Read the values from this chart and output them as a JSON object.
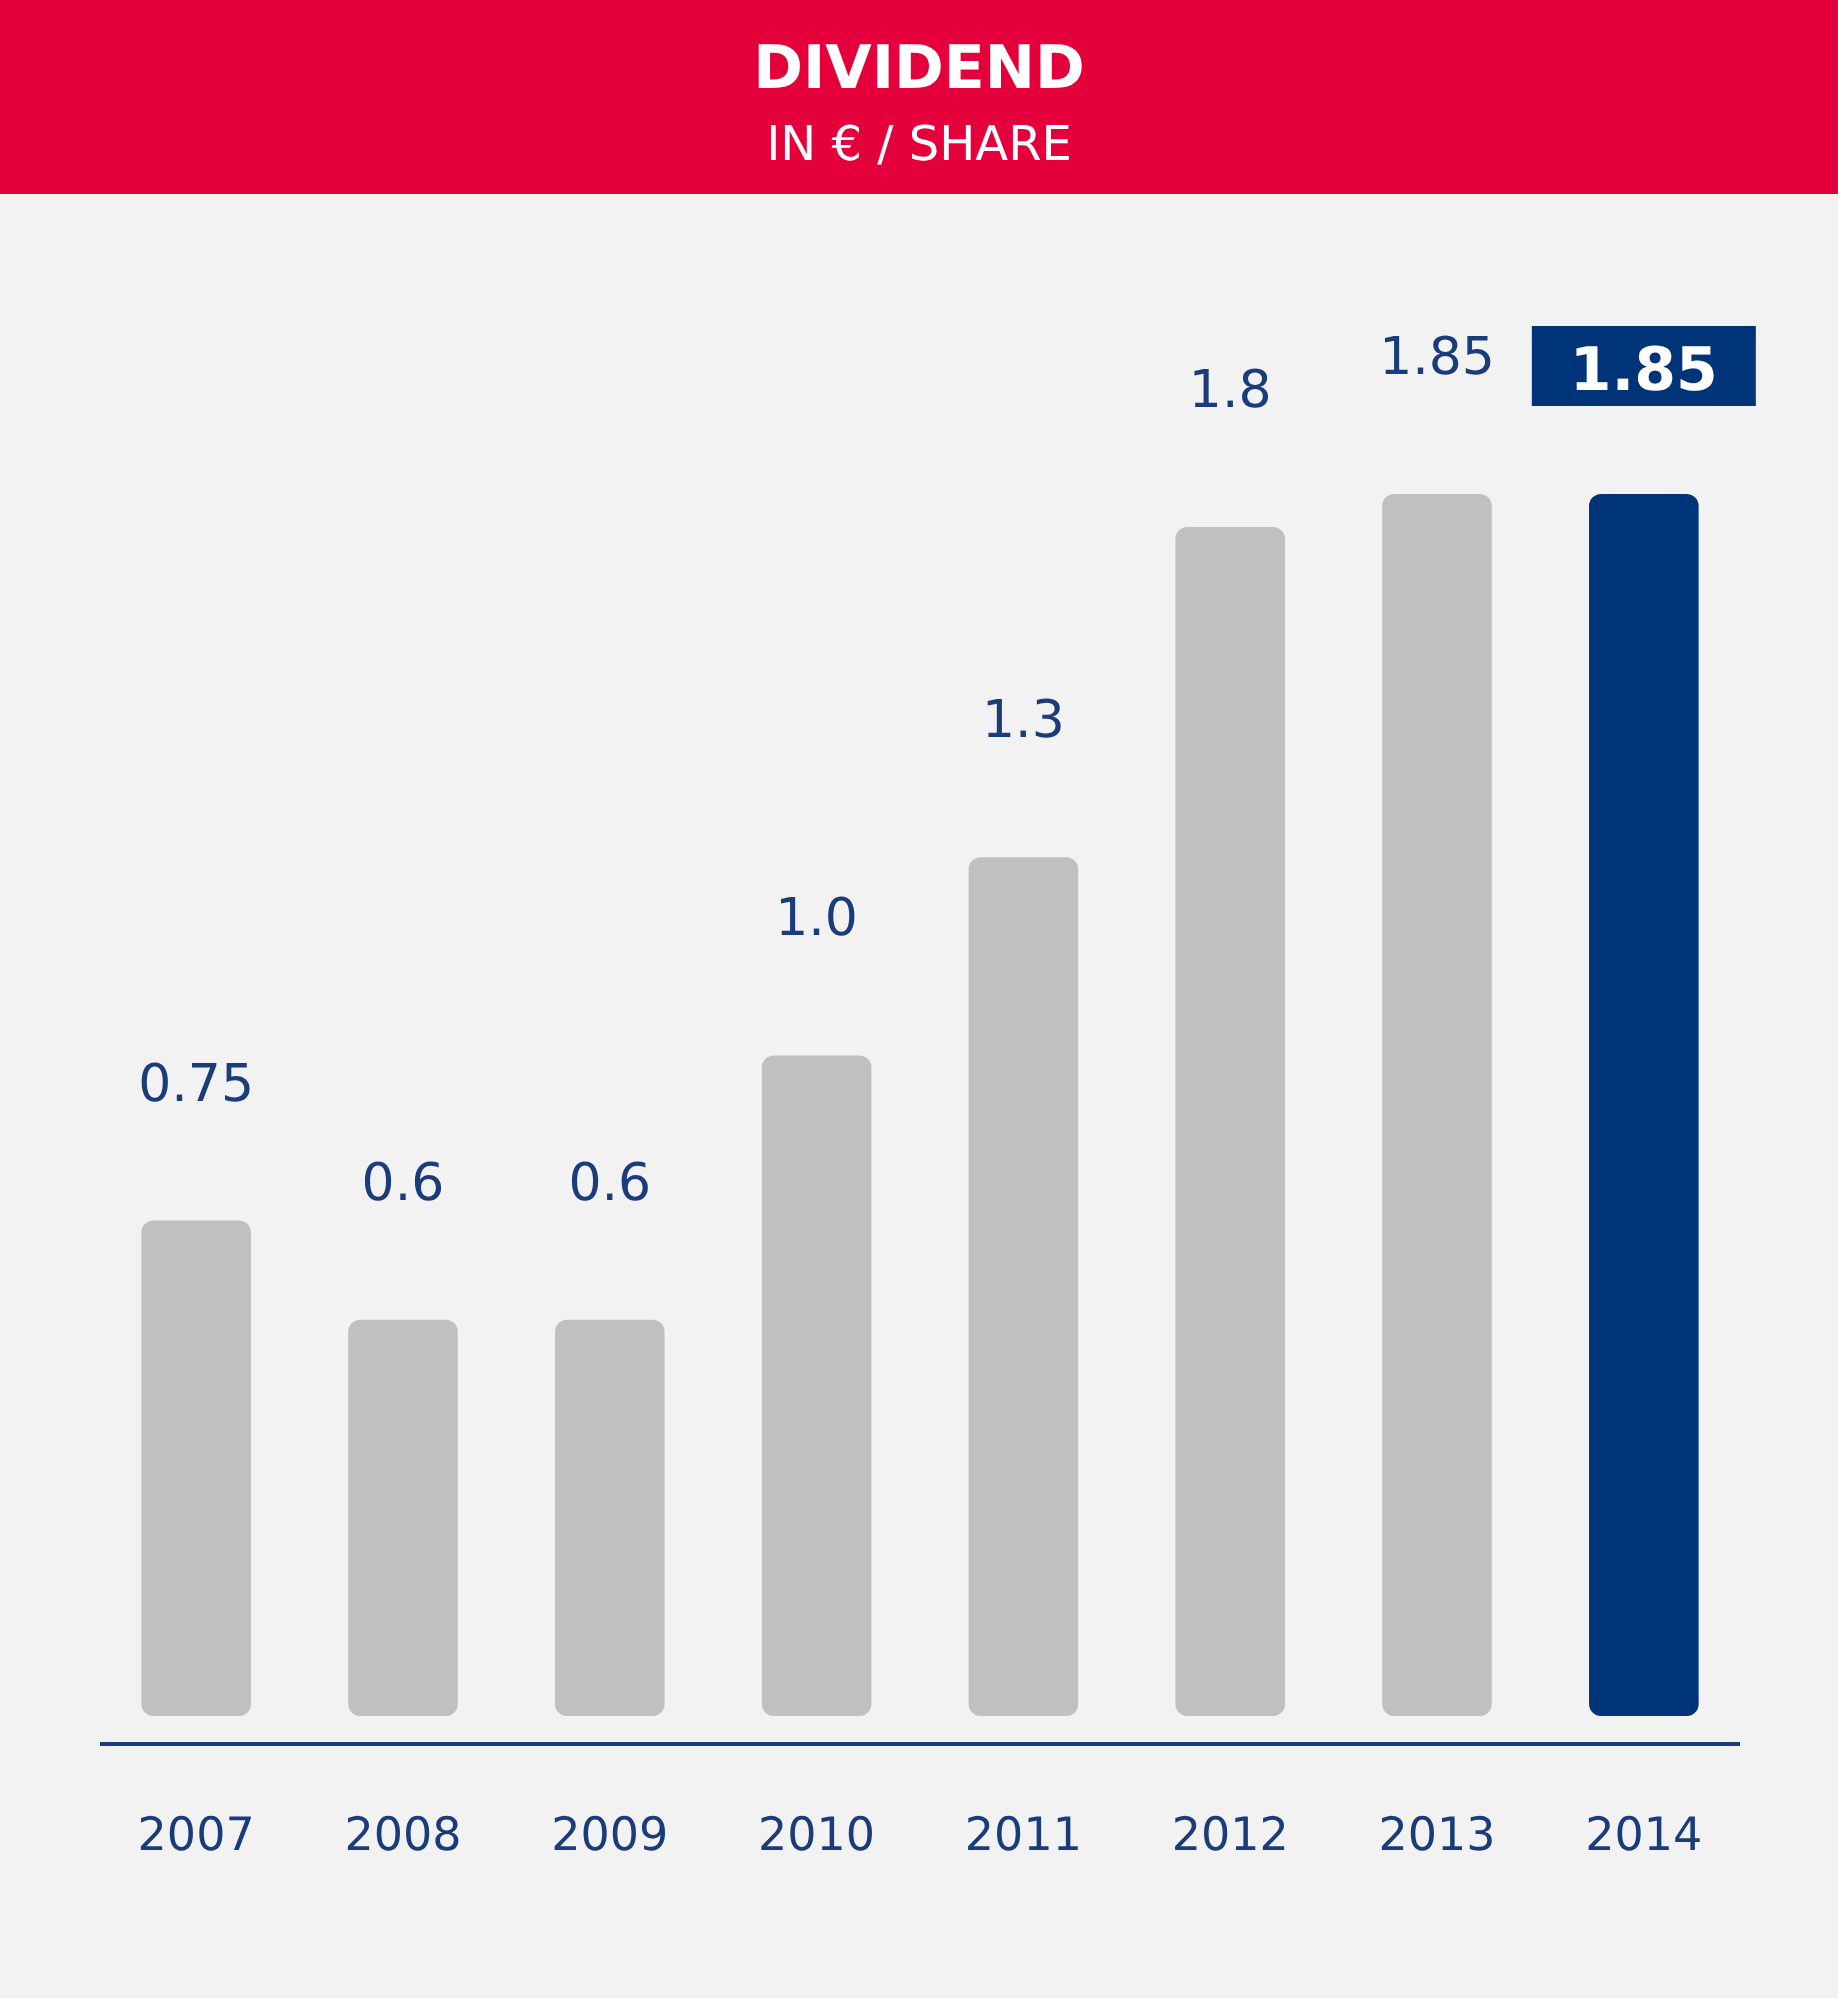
{
  "chart_data": {
    "type": "bar",
    "title": "DIVIDEND",
    "subtitle": "IN € / SHARE",
    "categories": [
      "2007",
      "2008",
      "2009",
      "2010",
      "2011",
      "2012",
      "2013",
      "2014"
    ],
    "values": [
      0.75,
      0.6,
      0.6,
      1.0,
      1.3,
      1.8,
      1.85,
      1.85
    ],
    "value_labels": [
      "0.75",
      "0.6",
      "0.6",
      "1.0",
      "1.3",
      "1.8",
      "1.85",
      "1.85"
    ],
    "colors": [
      "#c0c0c0",
      "#c0c0c0",
      "#c0c0c0",
      "#c0c0c0",
      "#c0c0c0",
      "#c0c0c0",
      "#c0c0c0",
      "#003478"
    ],
    "data_labels": true
  }
}
